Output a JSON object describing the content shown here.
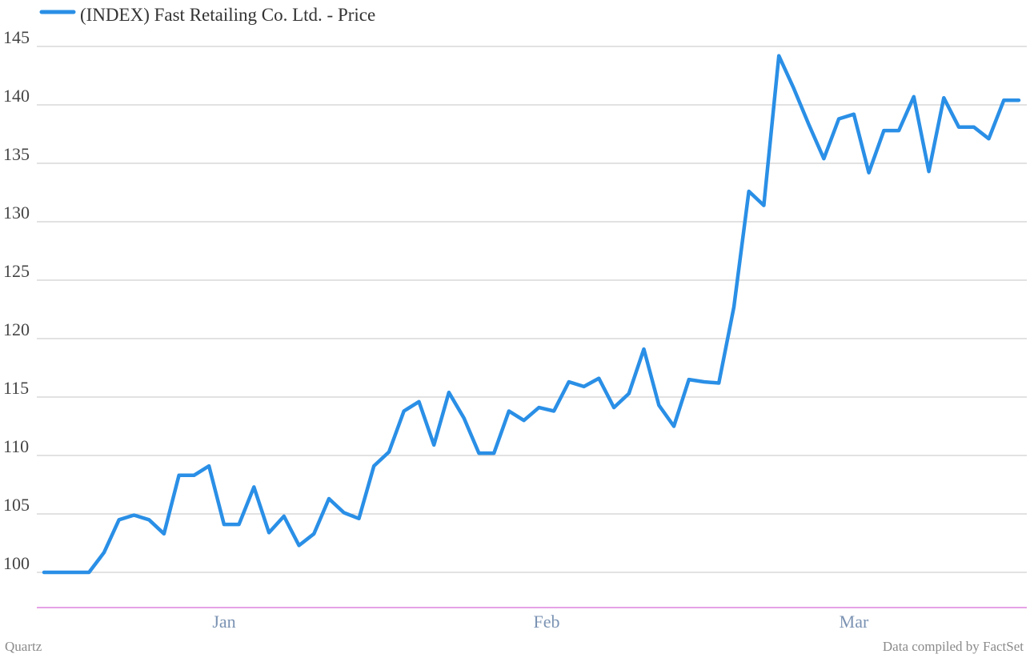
{
  "chart_data": {
    "type": "line",
    "title": "",
    "xlabel": "",
    "ylabel": "",
    "ylim": [
      97,
      145
    ],
    "yticks": [
      100,
      105,
      110,
      115,
      120,
      125,
      130,
      135,
      140,
      145
    ],
    "x_tick_labels": [
      "Jan",
      "Feb",
      "Mar"
    ],
    "grid": true,
    "legend_position": "top-left",
    "series": [
      {
        "name": "(INDEX) Fast Retailing Co. Ltd. - Price",
        "color": "#2a8fe6",
        "values": [
          100.0,
          100.0,
          100.0,
          100.0,
          101.7,
          104.5,
          104.9,
          104.5,
          103.3,
          108.3,
          108.3,
          109.1,
          104.1,
          104.1,
          107.3,
          103.4,
          104.8,
          102.3,
          103.3,
          106.3,
          105.1,
          104.6,
          109.1,
          110.3,
          113.8,
          114.6,
          110.9,
          115.4,
          113.2,
          110.2,
          110.2,
          113.8,
          113.0,
          114.1,
          113.8,
          116.3,
          115.9,
          116.6,
          114.1,
          115.3,
          119.1,
          114.3,
          112.5,
          116.5,
          116.3,
          116.2,
          122.7,
          132.6,
          131.4,
          144.2,
          141.4,
          138.3,
          135.4,
          138.8,
          139.2,
          134.2,
          137.8,
          137.8,
          140.7,
          134.3,
          140.6,
          138.1,
          138.1,
          137.1,
          140.4,
          140.4
        ]
      }
    ]
  },
  "footer": {
    "credit": "Quartz",
    "source": "Data compiled by FactSet"
  }
}
